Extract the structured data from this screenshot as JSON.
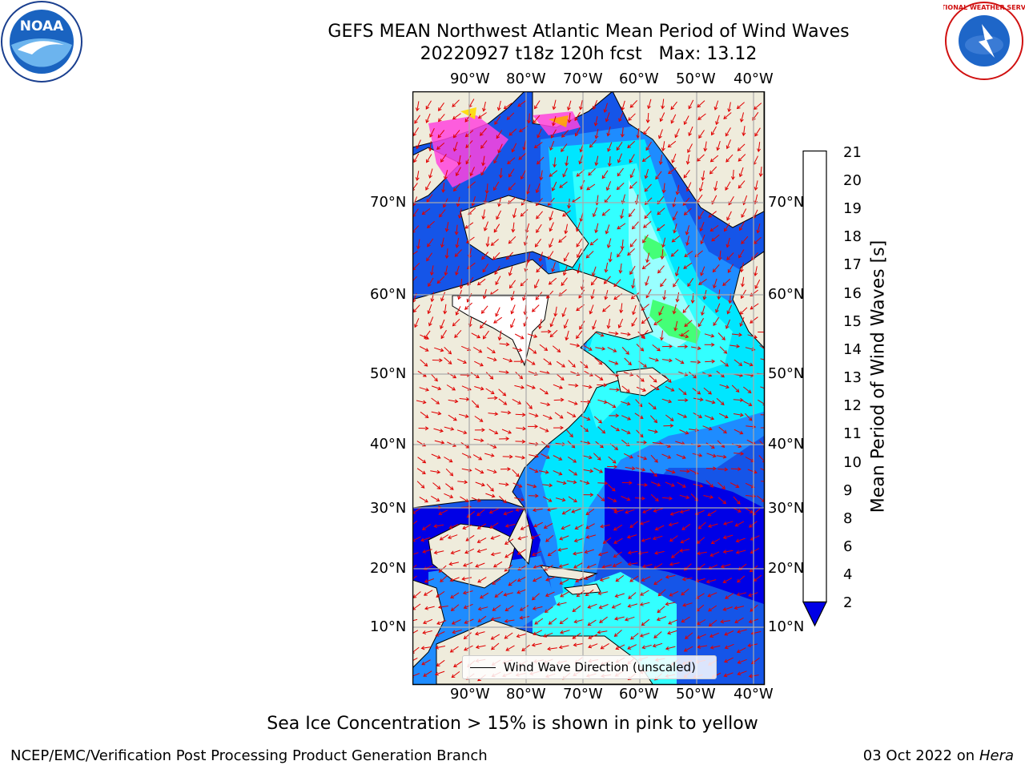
{
  "title": {
    "line1": "GEFS MEAN Northwest Atlantic Mean Period of Wind Waves",
    "line2": "20220927 t18z 120h fcst   Max: 13.12"
  },
  "map": {
    "lon_labels": [
      "90°W",
      "80°W",
      "70°W",
      "60°W",
      "50°W",
      "40°W"
    ],
    "lat_labels": [
      "70°N",
      "60°N",
      "50°N",
      "40°N",
      "30°N",
      "20°N",
      "10°N"
    ],
    "land_color": "#efecdc",
    "arrow_color": "#e00000"
  },
  "legend": {
    "label": "Wind Wave Direction (unscaled)"
  },
  "colorbar": {
    "label": "Mean Period of Wind Waves [s]",
    "ticks": [
      "21",
      "20",
      "19",
      "18",
      "17",
      "16",
      "15",
      "14",
      "13",
      "12",
      "11",
      "10",
      "9",
      "8",
      "6",
      "4",
      "2"
    ],
    "colors": [
      "#0000e6",
      "#0a73ff",
      "#00e6ff",
      "#33ffff",
      "#99ffff",
      "#44ff77",
      "#00e000",
      "#55ee00",
      "#bbff00",
      "#ddff00",
      "#ffff00",
      "#ffdd00",
      "#ffaa00",
      "#ff8800",
      "#ff5500",
      "#ff2a00",
      "#ff0000"
    ]
  },
  "footer": {
    "note": "Sea Ice Concentration > 15% is shown in pink to yellow",
    "left": "NCEP/EMC/Verification Post Processing Product Generation Branch",
    "right_prefix": "03 Oct 2022 on ",
    "right_host": "Hera"
  },
  "logos": {
    "noaa_text": "NOAA",
    "nws_text": "NATIONAL WEATHER SERVICE"
  }
}
